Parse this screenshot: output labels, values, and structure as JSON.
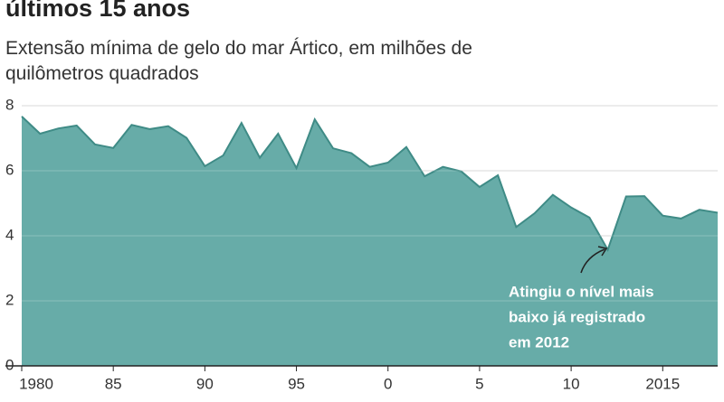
{
  "chart_data": {
    "type": "area",
    "title": "últimos 15 anos",
    "subtitle": "Extensão mínima de gelo do mar Ártico, em milhões de quilômetros quadrados",
    "x": [
      1980,
      1981,
      1982,
      1983,
      1984,
      1985,
      1986,
      1987,
      1988,
      1989,
      1990,
      1991,
      1992,
      1993,
      1994,
      1995,
      1996,
      1997,
      1998,
      1999,
      2000,
      2001,
      2002,
      2003,
      2004,
      2005,
      2006,
      2007,
      2008,
      2009,
      2010,
      2011,
      2012,
      2013,
      2014,
      2015,
      2016,
      2017,
      2018
    ],
    "values": [
      7.67,
      7.14,
      7.3,
      7.39,
      6.81,
      6.7,
      7.41,
      7.28,
      7.37,
      7.01,
      6.14,
      6.47,
      7.47,
      6.4,
      7.14,
      6.08,
      7.58,
      6.69,
      6.54,
      6.12,
      6.25,
      6.73,
      5.83,
      6.12,
      5.98,
      5.5,
      5.86,
      4.27,
      4.69,
      5.26,
      4.87,
      4.56,
      3.57,
      5.21,
      5.22,
      4.62,
      4.53,
      4.8,
      4.71
    ],
    "color": "#5fa8a3",
    "line_color": "#3f8b86",
    "xlim": [
      1980,
      2018
    ],
    "xticks": [
      1980,
      {
        "value": 1985,
        "label": "85"
      },
      {
        "value": 1990,
        "label": "90"
      },
      {
        "value": 1995,
        "label": "95"
      },
      {
        "value": 2000,
        "label": "0"
      },
      {
        "value": 2005,
        "label": "5"
      },
      {
        "value": 2010,
        "label": "10"
      },
      2015
    ],
    "ylim": [
      0,
      8
    ],
    "yticks": [
      0,
      2,
      4,
      6,
      8
    ],
    "grid": true,
    "annotation": [
      "Atingiu o nível mais",
      "baixo já registrado",
      "em 2012"
    ]
  }
}
